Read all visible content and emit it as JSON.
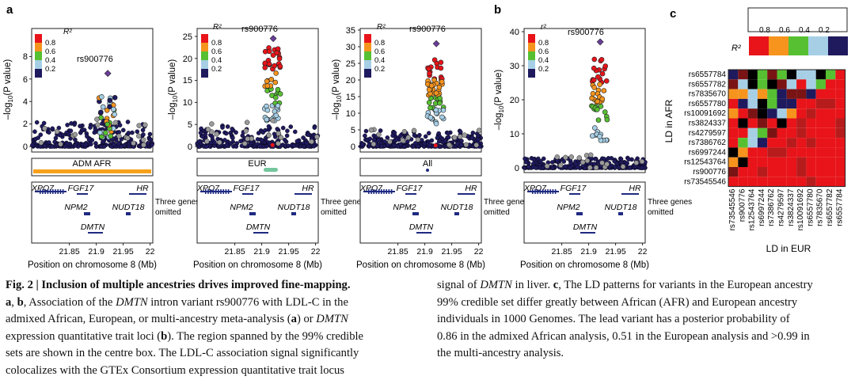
{
  "figure": {
    "panel_labels": [
      "a",
      "b",
      "c"
    ],
    "legend_title_R2": "R²",
    "legend_title_r2": "r²",
    "legend_ticks": [
      "0.8",
      "0.6",
      "0.4",
      "0.2"
    ],
    "ylabel_prefix": "–log",
    "ylabel_sub": "10",
    "ylabel_suffix": "(P value)",
    "lead_variant": "rs900776",
    "xlabel": "Position on chromosome 8 (Mb)",
    "three_genes_line1": "Three genes",
    "three_genes_line2": "omitted",
    "x_ticks": [
      "21.85",
      "21.9",
      "21.95",
      "22"
    ],
    "genes": {
      "xpo7": "XPO7",
      "fgf17": "FGF17",
      "hr": "HR",
      "npm2": "NPM2",
      "nudt18": "NUDT18",
      "dmtn": "DMTN"
    },
    "c_title": "R²",
    "c_scale_ticks": [
      "0.8",
      "0.6",
      "0.4",
      "0.2"
    ],
    "c_ylabel": "LD in AFR",
    "c_xlabel": "LD in EUR",
    "c_variants": [
      "rs6557784",
      "rs6557782",
      "rs7835670",
      "rs6557780",
      "rs10091692",
      "rs3824337",
      "rs4279597",
      "rs7386762",
      "rs6997244",
      "rs12543764",
      "rs900776",
      "rs73545546"
    ],
    "c_variants_x": [
      "rs73545546",
      "rs900776",
      "rs12543764",
      "rs6997244",
      "rs7386762",
      "rs4279597",
      "rs3824337",
      "rs10091692",
      "rs6557780",
      "rs7835670",
      "rs6557782",
      "rs6557784"
    ],
    "colors": {
      "r08": "#e8141a",
      "r06": "#f7941d",
      "r04": "#57c032",
      "r02": "#a6cfe6",
      "r00": "#1f1a5e",
      "lead": "#6a3d9a",
      "gene": "#1f2a80",
      "cs_afr": "#f7a11a",
      "cs_eur": "#74c69d",
      "cs_all": "#1f2a80"
    }
  },
  "panels": [
    {
      "id": "a1",
      "box_label": "ADM AFR",
      "ylim": [
        0,
        10
      ],
      "y_ticks": [
        "0",
        "2",
        "4",
        "6",
        "8"
      ],
      "lead": {
        "x": 21.9214,
        "y": 6.5
      }
    },
    {
      "id": "a2",
      "box_label": "EUR",
      "ylim": [
        0,
        25
      ],
      "y_ticks": [
        "0",
        "5",
        "10",
        "15",
        "20",
        "25"
      ],
      "lead": {
        "x": 21.9214,
        "y": 24
      }
    },
    {
      "id": "a3",
      "box_label": "All",
      "ylim": [
        0,
        35
      ],
      "y_ticks": [
        "0",
        "5",
        "10",
        "15",
        "20",
        "25",
        "30",
        "35"
      ],
      "lead": {
        "x": 21.9214,
        "y": 32
      }
    },
    {
      "id": "b",
      "box_label": "",
      "ylim": [
        0,
        40
      ],
      "y_ticks": [
        "0",
        "10",
        "20",
        "30",
        "40"
      ],
      "lead": {
        "x": 21.9214,
        "y": 37
      }
    }
  ],
  "caption": {
    "fig_label": "Fig. 2 | ",
    "title": "Inclusion of multiple ancestries drives improved fine-mapping.",
    "l1b": "a",
    "l1c": ", ",
    "l1d": "b",
    "l1e": ", Association of the ",
    "l1f": "DMTN",
    "l1g": " intron variant rs900776 with LDL-C in the",
    "l2a": "admixed African, European, or multi-ancestry meta-analysis (",
    "l2b": "a",
    "l2c": ") or ",
    "l2d": "DMTN",
    "l3a": "expression quantitative trait loci (",
    "l3b": "b",
    "l3c": "). The region spanned by the 99% credible",
    "l4": "sets are shown in the centre box. The LDL-C association signal significantly",
    "l5": "colocalizes with the GTEx Consortium expression quantitative trait locus",
    "r1a": "signal of ",
    "r1b": "DMTN",
    "r1c": " in liver. ",
    "r1d": "c",
    "r1e": ", The LD patterns for variants in the European ancestry",
    "r2": "99% credible set differ greatly between African (AFR) and European ancestry",
    "r3": "individuals in 1000 Genomes. The lead variant has a posterior probability of",
    "r4": "0.86 in the admixed African analysis, 0.51 in the European analysis and >0.99 in",
    "r5": "the multi-ancestry analysis."
  }
}
